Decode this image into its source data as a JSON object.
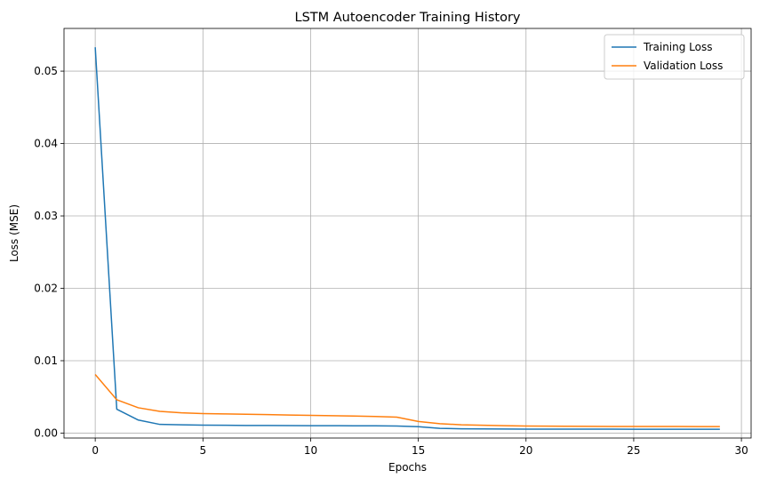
{
  "chart_data": {
    "type": "line",
    "title": "LSTM Autoencoder Training History",
    "xlabel": "Epochs",
    "ylabel": "Loss (MSE)",
    "xlim": [
      -1.45,
      30.45
    ],
    "ylim": [
      -0.00068,
      0.0559
    ],
    "xticks": [
      0,
      5,
      10,
      15,
      20,
      25,
      30
    ],
    "yticks": [
      0.0,
      0.01,
      0.02,
      0.03,
      0.04,
      0.05
    ],
    "ytick_labels": [
      "0.00",
      "0.01",
      "0.02",
      "0.03",
      "0.04",
      "0.05"
    ],
    "grid": true,
    "legend_position": "top-right",
    "x": [
      0,
      1,
      2,
      3,
      4,
      5,
      6,
      7,
      8,
      9,
      10,
      11,
      12,
      13,
      14,
      15,
      16,
      17,
      18,
      19,
      20,
      21,
      22,
      23,
      24,
      25,
      26,
      27,
      28,
      29
    ],
    "series": [
      {
        "name": "Training Loss",
        "color": "#1f77b4",
        "values": [
          0.0533,
          0.0033,
          0.0018,
          0.0012,
          0.00115,
          0.0011,
          0.00108,
          0.00106,
          0.00105,
          0.00104,
          0.00103,
          0.00102,
          0.00101,
          0.001,
          0.00098,
          0.00088,
          0.00065,
          0.0006,
          0.00058,
          0.00056,
          0.00055,
          0.00055,
          0.00054,
          0.00054,
          0.00054,
          0.00053,
          0.00053,
          0.00053,
          0.00053,
          0.00053
        ]
      },
      {
        "name": "Validation Loss",
        "color": "#ff7f0e",
        "values": [
          0.0081,
          0.0046,
          0.0035,
          0.003,
          0.0028,
          0.0027,
          0.00265,
          0.0026,
          0.00255,
          0.0025,
          0.00245,
          0.0024,
          0.00235,
          0.0023,
          0.0022,
          0.0016,
          0.0013,
          0.00115,
          0.00108,
          0.00102,
          0.00098,
          0.00096,
          0.00094,
          0.00093,
          0.00092,
          0.00092,
          0.00091,
          0.00091,
          0.0009,
          0.0009
        ]
      }
    ]
  }
}
